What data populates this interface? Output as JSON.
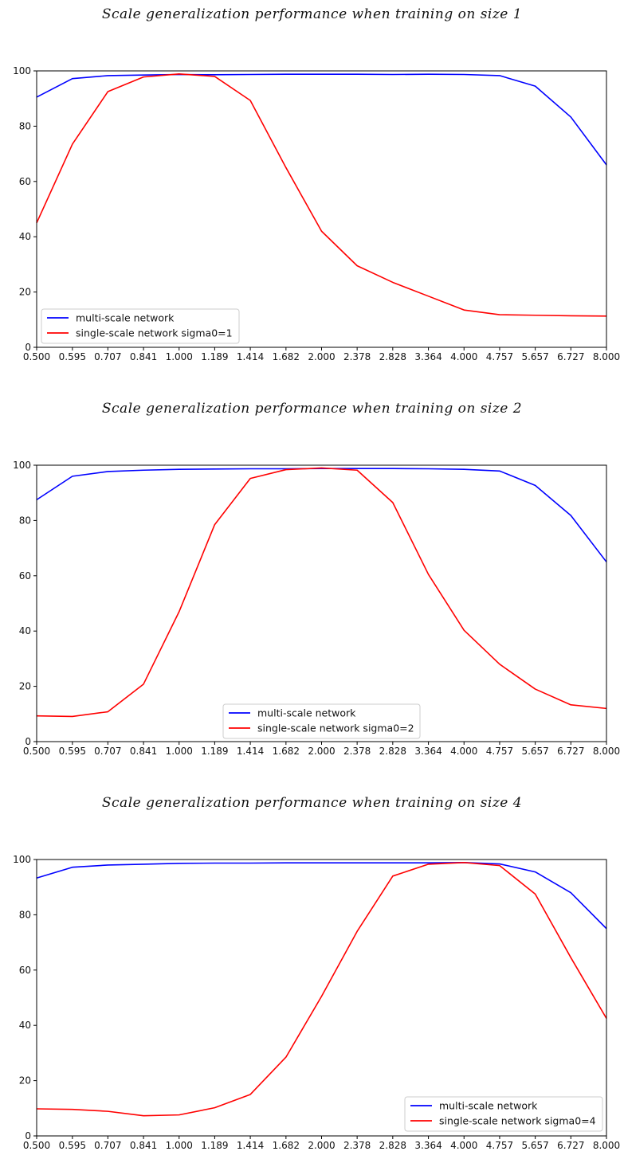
{
  "figure": {
    "x_tick_labels": [
      "0.500",
      "0.595",
      "0.707",
      "0.841",
      "1.000",
      "1.189",
      "1.414",
      "1.682",
      "2.000",
      "2.378",
      "2.828",
      "3.364",
      "4.000",
      "4.757",
      "5.657",
      "6.727",
      "8.000"
    ],
    "y_tick_labels": [
      "0",
      "20",
      "40",
      "60",
      "80",
      "100"
    ]
  },
  "chart_data": [
    {
      "type": "line",
      "title": "Scale generalization performance when training on size 1",
      "x": [
        0.5,
        0.595,
        0.707,
        0.841,
        1.0,
        1.189,
        1.414,
        1.682,
        2.0,
        2.378,
        2.828,
        3.364,
        4.0,
        4.757,
        5.657,
        6.727,
        8.0
      ],
      "xscale": "log2",
      "ylim": [
        0,
        100
      ],
      "grid": false,
      "legend_position": "lower-left",
      "series": [
        {
          "name": "multi-scale network",
          "color": "#0000ff",
          "values": [
            90.5,
            97.2,
            98.3,
            98.5,
            98.7,
            98.6,
            98.7,
            98.8,
            98.8,
            98.8,
            98.7,
            98.8,
            98.7,
            98.3,
            94.5,
            83.3,
            66.0
          ]
        },
        {
          "name": "single-scale network sigma0=1",
          "color": "#ff0000",
          "values": [
            45.0,
            73.5,
            92.5,
            97.8,
            98.9,
            98.0,
            89.3,
            65.0,
            42.0,
            29.5,
            23.5,
            18.5,
            13.5,
            11.8,
            11.6,
            11.4,
            11.3
          ]
        }
      ]
    },
    {
      "type": "line",
      "title": "Scale generalization performance when training on size 2",
      "x": [
        0.5,
        0.595,
        0.707,
        0.841,
        1.0,
        1.189,
        1.414,
        1.682,
        2.0,
        2.378,
        2.828,
        3.364,
        4.0,
        4.757,
        5.657,
        6.727,
        8.0
      ],
      "xscale": "log2",
      "ylim": [
        0,
        100
      ],
      "grid": false,
      "legend_position": "lower-center",
      "series": [
        {
          "name": "multi-scale network",
          "color": "#0000ff",
          "values": [
            87.5,
            96.0,
            97.7,
            98.2,
            98.5,
            98.6,
            98.7,
            98.7,
            98.8,
            98.8,
            98.8,
            98.7,
            98.5,
            97.9,
            92.7,
            81.8,
            65.0
          ]
        },
        {
          "name": "single-scale network sigma0=2",
          "color": "#ff0000",
          "values": [
            9.3,
            9.1,
            10.8,
            20.8,
            47.0,
            78.5,
            95.2,
            98.4,
            99.0,
            98.2,
            86.5,
            60.5,
            40.3,
            28.0,
            19.0,
            13.3,
            12.0
          ]
        }
      ]
    },
    {
      "type": "line",
      "title": "Scale generalization performance when training on size 4",
      "x": [
        0.5,
        0.595,
        0.707,
        0.841,
        1.0,
        1.189,
        1.414,
        1.682,
        2.0,
        2.378,
        2.828,
        3.364,
        4.0,
        4.757,
        5.657,
        6.727,
        8.0
      ],
      "xscale": "log2",
      "ylim": [
        0,
        100
      ],
      "grid": false,
      "legend_position": "lower-right",
      "series": [
        {
          "name": "multi-scale network",
          "color": "#0000ff",
          "values": [
            93.3,
            97.2,
            98.0,
            98.3,
            98.6,
            98.7,
            98.7,
            98.8,
            98.8,
            98.8,
            98.8,
            98.8,
            98.9,
            98.4,
            95.5,
            88.0,
            75.0
          ]
        },
        {
          "name": "single-scale network sigma0=4",
          "color": "#ff0000",
          "values": [
            9.8,
            9.6,
            8.9,
            7.3,
            7.6,
            10.2,
            15.0,
            28.5,
            50.5,
            74.0,
            94.0,
            98.3,
            98.9,
            97.8,
            87.5,
            64.5,
            42.5
          ]
        }
      ]
    }
  ]
}
